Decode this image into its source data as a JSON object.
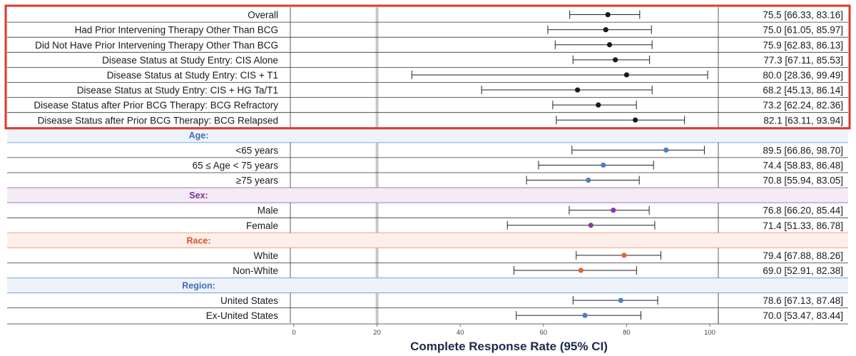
{
  "chart_data": {
    "type": "forest",
    "xlabel": "Complete Response Rate (95% CI)",
    "xlim": [
      0,
      100
    ],
    "xticks": [
      0,
      20,
      40,
      60,
      80,
      100
    ],
    "reference_line": 20,
    "highlighted_group_color": "#d93a2b",
    "rows": [
      {
        "section": null,
        "label": "Overall",
        "estimate": 75.5,
        "ci": [
          66.33,
          83.16
        ],
        "value_text": "75.5 [66.33, 83.16]",
        "color": "#1a1a1a"
      },
      {
        "section": null,
        "label": "Had Prior Intervening Therapy Other Than BCG",
        "estimate": 75.0,
        "ci": [
          61.05,
          85.97
        ],
        "value_text": "75.0 [61.05, 85.97]",
        "color": "#1a1a1a"
      },
      {
        "section": null,
        "label": "Did Not Have Prior Intervening Therapy Other Than BCG",
        "estimate": 75.9,
        "ci": [
          62.83,
          86.13
        ],
        "value_text": "75.9 [62.83, 86.13]",
        "color": "#1a1a1a"
      },
      {
        "section": null,
        "label": "Disease Status at Study Entry: CIS Alone",
        "estimate": 77.3,
        "ci": [
          67.11,
          85.53
        ],
        "value_text": "77.3 [67.11, 85.53]",
        "color": "#1a1a1a"
      },
      {
        "section": null,
        "label": "Disease Status at Study Entry: CIS + T1",
        "estimate": 80.0,
        "ci": [
          28.36,
          99.49
        ],
        "value_text": "80.0 [28.36, 99.49]",
        "color": "#1a1a1a"
      },
      {
        "section": null,
        "label": "Disease Status at Study Entry: CIS + HG Ta/T1",
        "estimate": 68.2,
        "ci": [
          45.13,
          86.14
        ],
        "value_text": "68.2 [45.13, 86.14]",
        "color": "#1a1a1a"
      },
      {
        "section": null,
        "label": "Disease Status after Prior BCG Therapy: BCG Refractory",
        "estimate": 73.2,
        "ci": [
          62.24,
          82.36
        ],
        "value_text": "73.2 [62.24, 82.36]",
        "color": "#1a1a1a"
      },
      {
        "section": null,
        "label": "Disease Status after Prior BCG Therapy: BCG Relapsed",
        "estimate": 82.1,
        "ci": [
          63.11,
          93.94
        ],
        "value_text": "82.1 [63.11, 93.94]",
        "color": "#1a1a1a"
      },
      {
        "section": "Age:",
        "label": "<65 years",
        "estimate": 89.5,
        "ci": [
          66.86,
          98.7
        ],
        "value_text": "89.5 [66.86, 98.70]",
        "color": "#4a7fc8"
      },
      {
        "section": "Age:",
        "label": "65 ≤ Age < 75 years",
        "estimate": 74.4,
        "ci": [
          58.83,
          86.48
        ],
        "value_text": "74.4 [58.83, 86.48]",
        "color": "#4a7fc8"
      },
      {
        "section": "Age:",
        "label": "≥75 years",
        "estimate": 70.8,
        "ci": [
          55.94,
          83.05
        ],
        "value_text": "70.8 [55.94, 83.05]",
        "color": "#4a7fc8"
      },
      {
        "section": "Sex:",
        "label": "Male",
        "estimate": 76.8,
        "ci": [
          66.2,
          85.44
        ],
        "value_text": "76.8 [66.20, 85.44]",
        "color": "#8a3aa0"
      },
      {
        "section": "Sex:",
        "label": "Female",
        "estimate": 71.4,
        "ci": [
          51.33,
          86.78
        ],
        "value_text": "71.4 [51.33, 86.78]",
        "color": "#8a3aa0"
      },
      {
        "section": "Race:",
        "label": "White",
        "estimate": 79.4,
        "ci": [
          67.88,
          88.26
        ],
        "value_text": "79.4 [67.88, 88.26]",
        "color": "#e8613a"
      },
      {
        "section": "Race:",
        "label": "Non-White",
        "estimate": 69.0,
        "ci": [
          52.91,
          82.38
        ],
        "value_text": "69.0 [52.91, 82.38]",
        "color": "#e8613a"
      },
      {
        "section": "Region:",
        "label": "United States",
        "estimate": 78.6,
        "ci": [
          67.13,
          87.48
        ],
        "value_text": "78.6 [67.13, 87.48]",
        "color": "#4a7fc8"
      },
      {
        "section": "Region:",
        "label": "Ex-United States",
        "estimate": 70.0,
        "ci": [
          53.47,
          83.44
        ],
        "value_text": "70.0 [53.47, 83.44]",
        "color": "#4a7fc8"
      }
    ],
    "sections": [
      {
        "title": "Age:",
        "text_color": "#3f6fb5",
        "bg_color": "#eef3fa",
        "line_color": "#8fb0dc"
      },
      {
        "title": "Sex:",
        "text_color": "#7b3190",
        "bg_color": "#f4ebf6",
        "line_color": "#b88fc6"
      },
      {
        "title": "Race:",
        "text_color": "#e0502a",
        "bg_color": "#fdf0ea",
        "line_color": "#f0a88e"
      },
      {
        "title": "Region:",
        "text_color": "#3f6fb5",
        "bg_color": "#eef3fa",
        "line_color": "#8fb0dc"
      }
    ]
  }
}
